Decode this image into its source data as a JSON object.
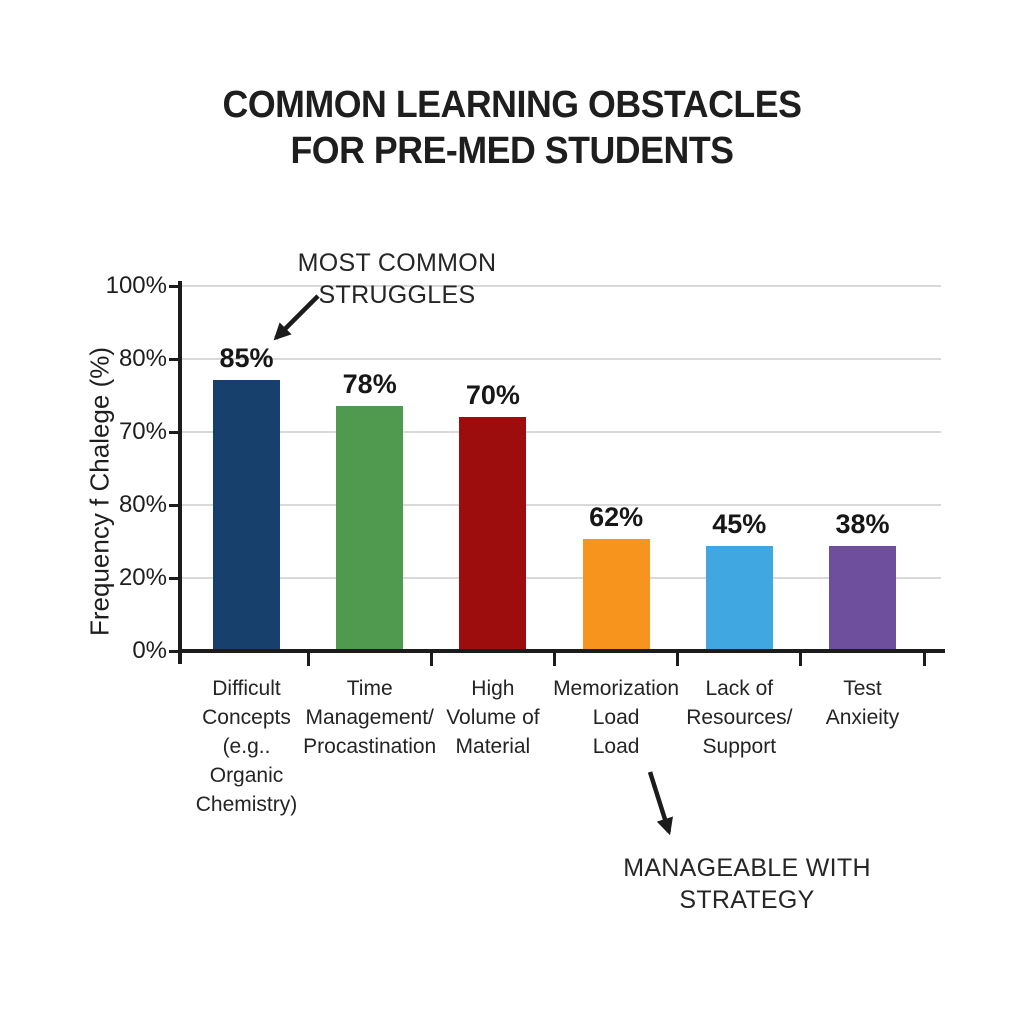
{
  "title": {
    "line1": "COMMON LEARNING OBSTACLES",
    "line2": "FOR PRE-MED STUDENTS"
  },
  "annotations": {
    "most_common": {
      "line1": "MOST COMMON",
      "line2": "STRUGGLES"
    },
    "manageable": "MANAGEABLE WITH STRATEGY"
  },
  "chart_data": {
    "type": "bar",
    "title": "COMMON LEARNING OBSTACLES FOR PRE-MED STUDENTS",
    "ylabel": "Frequency f Chalege (%)",
    "xlabel": "",
    "grid": true,
    "legend": false,
    "y_axis": {
      "tick_labels": [
        "100%",
        "80%",
        "70%",
        "80%",
        "20%",
        "0%"
      ]
    },
    "bars": [
      {
        "name": "difficult-concepts",
        "category_lines": [
          "Difficult",
          "Concepts",
          "(e.g..",
          "Organic",
          "Chemistry)"
        ],
        "value": 85,
        "value_label": "85%",
        "color": "#17406d",
        "drawn_height_pct": 74.2
      },
      {
        "name": "time-management",
        "category_lines": [
          "Time",
          "Management/",
          "Procastination"
        ],
        "value": 78,
        "value_label": "78%",
        "color": "#4f9a4e",
        "drawn_height_pct": 67.1
      },
      {
        "name": "high-volume",
        "category_lines": [
          "High",
          "Volume of",
          "Material"
        ],
        "value": 70,
        "value_label": "70%",
        "color": "#9e0d0e",
        "drawn_height_pct": 64.1
      },
      {
        "name": "memorization-load",
        "category_lines": [
          "Memorization",
          "Load",
          "Load"
        ],
        "value": 62,
        "value_label": "62%",
        "color": "#f7941e",
        "drawn_height_pct": 30.7
      },
      {
        "name": "lack-of-resources",
        "category_lines": [
          "Lack of",
          "Resources/",
          "Support"
        ],
        "value": 45,
        "value_label": "45%",
        "color": "#41a7e0",
        "drawn_height_pct": 28.8
      },
      {
        "name": "test-anxiety",
        "category_lines": [
          "Test",
          "Anxieity"
        ],
        "value": 38,
        "value_label": "38%",
        "color": "#6d4f9e",
        "drawn_height_pct": 28.8
      }
    ]
  }
}
